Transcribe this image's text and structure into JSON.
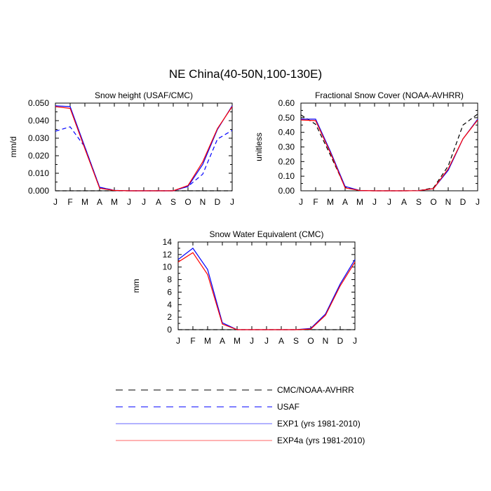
{
  "figure": {
    "title": "NE China(40-50N,100-130E)"
  },
  "chart_data": [
    {
      "type": "line",
      "title": "Snow height (USAF/CMC)",
      "xlabel": "",
      "ylabel": "mm/d",
      "categories": [
        "J",
        "F",
        "M",
        "A",
        "M",
        "J",
        "J",
        "A",
        "S",
        "O",
        "N",
        "D",
        "J"
      ],
      "yticks": [
        "0.000",
        "0.010",
        "0.020",
        "0.030",
        "0.040",
        "0.050"
      ],
      "ylim": [
        0,
        0.05
      ],
      "grid": false,
      "series": [
        {
          "name": "CMC/NOAA-AVHRR",
          "color": "#000000",
          "dash": true,
          "values": [
            0,
            0,
            0,
            0,
            0,
            0,
            0,
            0,
            0,
            0,
            0,
            0,
            0
          ]
        },
        {
          "name": "USAF",
          "color": "#0000ff",
          "dash": true,
          "values": [
            0.034,
            0.0365,
            0.025,
            0.002,
            0.0003,
            0,
            0,
            0,
            0,
            0.0025,
            0.0095,
            0.0295,
            0.0345
          ]
        },
        {
          "name": "EXP1 (yrs 1981-2010)",
          "color": "#0000ff",
          "dash": false,
          "values": [
            0.0485,
            0.048,
            0.025,
            0.002,
            0.0002,
            0,
            0,
            0,
            0,
            0.0025,
            0.015,
            0.035,
            0.0485
          ]
        },
        {
          "name": "EXP4a (yrs 1981-2010)",
          "color": "#ff0000",
          "dash": false,
          "values": [
            0.048,
            0.047,
            0.024,
            0.0015,
            0.0002,
            0,
            0,
            0,
            0,
            0.003,
            0.0165,
            0.0355,
            0.048
          ]
        }
      ]
    },
    {
      "type": "line",
      "title": "Fractional Snow Cover (NOAA-AVHRR)",
      "xlabel": "",
      "ylabel": "unitless",
      "categories": [
        "J",
        "F",
        "M",
        "A",
        "M",
        "J",
        "J",
        "A",
        "S",
        "O",
        "N",
        "D",
        "J"
      ],
      "yticks": [
        "0.00",
        "0.10",
        "0.20",
        "0.30",
        "0.40",
        "0.50",
        "0.60"
      ],
      "ylim": [
        0,
        0.6
      ],
      "grid": false,
      "series": [
        {
          "name": "CMC/NOAA-AVHRR",
          "color": "#000000",
          "dash": true,
          "values": [
            0.52,
            0.455,
            0.245,
            0.025,
            0.002,
            0,
            0,
            0,
            0.001,
            0.02,
            0.17,
            0.45,
            0.525
          ]
        },
        {
          "name": "EXP1 (yrs 1981-2010)",
          "color": "#0000ff",
          "dash": false,
          "values": [
            0.49,
            0.49,
            0.27,
            0.03,
            0.002,
            0,
            0,
            0,
            0.001,
            0.015,
            0.14,
            0.355,
            0.49
          ]
        },
        {
          "name": "EXP4a (yrs 1981-2010)",
          "color": "#ff0000",
          "dash": false,
          "values": [
            0.485,
            0.48,
            0.26,
            0.02,
            0.002,
            0,
            0,
            0,
            0.001,
            0.015,
            0.15,
            0.355,
            0.485
          ]
        }
      ]
    },
    {
      "type": "line",
      "title": "Snow Water Equivalent (CMC)",
      "xlabel": "",
      "ylabel": "mm",
      "categories": [
        "J",
        "F",
        "M",
        "A",
        "M",
        "J",
        "J",
        "A",
        "S",
        "O",
        "N",
        "D",
        "J"
      ],
      "yticks": [
        "0",
        "2",
        "4",
        "6",
        "8",
        "10",
        "12",
        "14"
      ],
      "ylim": [
        0,
        14
      ],
      "grid": false,
      "series": [
        {
          "name": "CMC/NOAA-AVHRR",
          "color": "#000000",
          "dash": true,
          "values": [
            0,
            0,
            0,
            0,
            0,
            0,
            0,
            0,
            0,
            0,
            0,
            0,
            0
          ]
        },
        {
          "name": "EXP1 (yrs 1981-2010)",
          "color": "#0000ff",
          "dash": false,
          "values": [
            11.2,
            13.0,
            9.6,
            1.1,
            0,
            0,
            0,
            0,
            0,
            0.2,
            2.5,
            7.3,
            11.2
          ]
        },
        {
          "name": "EXP4a (yrs 1981-2010)",
          "color": "#ff0000",
          "dash": false,
          "values": [
            10.8,
            12.3,
            8.8,
            0.9,
            0,
            0,
            0,
            0,
            0,
            0.1,
            2.3,
            7.0,
            10.8
          ]
        }
      ]
    }
  ],
  "legend": {
    "placement": "bottom-center",
    "items": [
      {
        "label": "CMC/NOAA-AVHRR",
        "color": "#000000",
        "dash": true
      },
      {
        "label": "USAF",
        "color": "#0000ff",
        "dash": true
      },
      {
        "label": "EXP1 (yrs 1981-2010)",
        "color": "#0000ff",
        "dash": false
      },
      {
        "label": "EXP4a (yrs 1981-2010)",
        "color": "#ff0000",
        "dash": false
      }
    ]
  }
}
